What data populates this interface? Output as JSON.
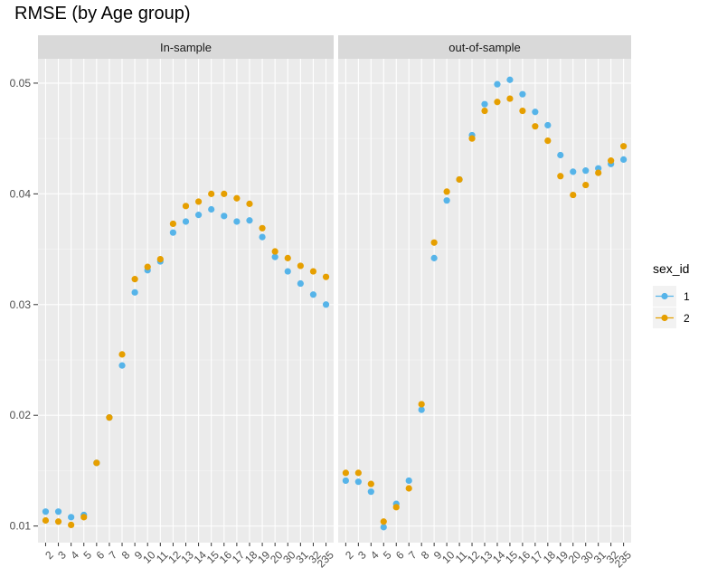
{
  "title": "RMSE (by Age group)",
  "legend": {
    "title": "sex_id",
    "items": [
      {
        "label": "1",
        "color": "#56B4E9"
      },
      {
        "label": "2",
        "color": "#E69F00"
      }
    ]
  },
  "chart_data": {
    "type": "scatter",
    "title": "RMSE (by Age group)",
    "facets": [
      "In-sample",
      "out-of-sample"
    ],
    "categories": [
      "2",
      "3",
      "4",
      "5",
      "6",
      "7",
      "8",
      "9",
      "10",
      "11",
      "12",
      "13",
      "14",
      "15",
      "16",
      "17",
      "18",
      "19",
      "20",
      "30",
      "31",
      "32",
      "235"
    ],
    "ylim": [
      0.0085,
      0.0522
    ],
    "y_ticks": [
      0.01,
      0.02,
      0.03,
      0.04,
      0.05
    ],
    "y_tick_labels": [
      "0.01",
      "0.02",
      "0.03",
      "0.04",
      "0.05"
    ],
    "grid": true,
    "legend_position": "right",
    "panels": [
      {
        "facet": "In-sample",
        "series": [
          {
            "name": "1",
            "color": "#56B4E9",
            "values": [
              0.0113,
              0.0113,
              0.0108,
              0.011,
              0.0157,
              0.0198,
              0.0245,
              0.0311,
              0.0331,
              0.0339,
              0.0365,
              0.0375,
              0.0381,
              0.0386,
              0.038,
              0.0375,
              0.0376,
              0.0361,
              0.0343,
              0.033,
              0.0319,
              0.0309,
              0.03
            ]
          },
          {
            "name": "2",
            "color": "#E69F00",
            "values": [
              0.0105,
              0.0104,
              0.0101,
              0.0108,
              0.0157,
              0.0198,
              0.0255,
              0.0323,
              0.0334,
              0.0341,
              0.0373,
              0.0389,
              0.0393,
              0.04,
              0.04,
              0.0396,
              0.0391,
              0.0369,
              0.0348,
              0.0342,
              0.0335,
              0.033,
              0.0325
            ]
          }
        ]
      },
      {
        "facet": "out-of-sample",
        "series": [
          {
            "name": "1",
            "color": "#56B4E9",
            "values": [
              0.0141,
              0.014,
              0.0131,
              0.0099,
              0.012,
              0.0141,
              0.0205,
              0.0342,
              0.0394,
              0.0413,
              0.0453,
              0.0481,
              0.0499,
              0.0503,
              0.049,
              0.0474,
              0.0462,
              0.0435,
              0.042,
              0.0421,
              0.0423,
              0.0427,
              0.0431
            ]
          },
          {
            "name": "2",
            "color": "#E69F00",
            "values": [
              0.0148,
              0.0148,
              0.0138,
              0.0104,
              0.0117,
              0.0134,
              0.021,
              0.0356,
              0.0402,
              0.0413,
              0.045,
              0.0475,
              0.0483,
              0.0486,
              0.0475,
              0.0461,
              0.0448,
              0.0416,
              0.0399,
              0.0408,
              0.0419,
              0.043,
              0.0443
            ]
          }
        ]
      }
    ]
  }
}
